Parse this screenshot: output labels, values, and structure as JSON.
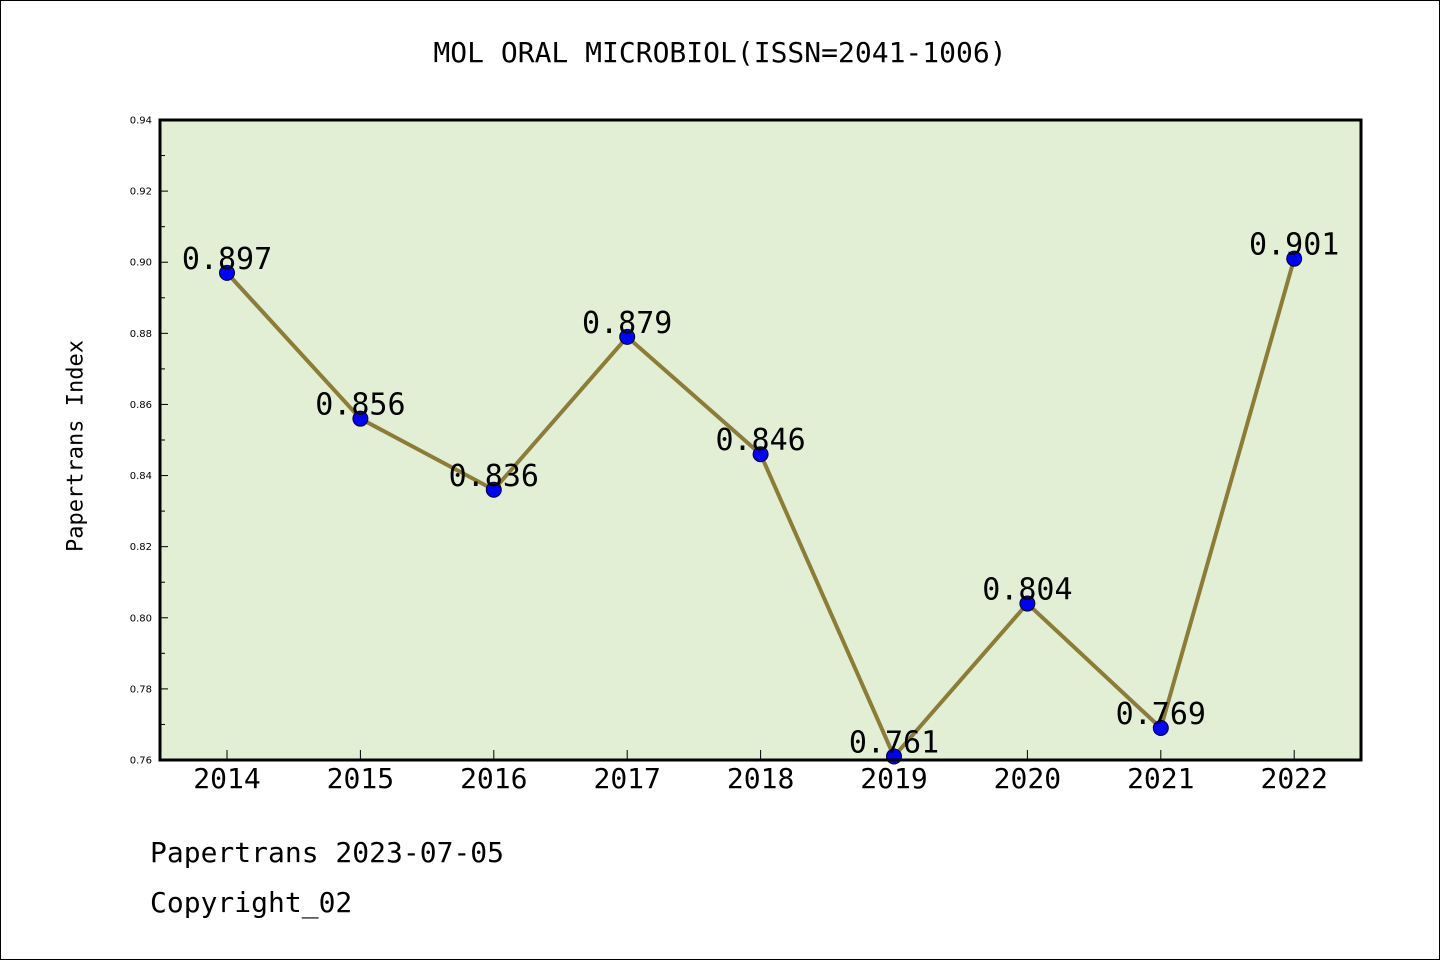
{
  "header": {
    "title": "MOL ORAL MICROBIOL(ISSN=2041-1006)"
  },
  "footer": {
    "date_text": "Papertrans 2023-07-05",
    "copyright_text": "Copyright_02"
  },
  "colors": {
    "plot_background": "#e2efd4",
    "line": "#8b7d38",
    "marker": "#0000ff"
  },
  "chart_data": {
    "type": "line",
    "title": "MOL ORAL MICROBIOL(ISSN=2041-1006)",
    "xlabel": "",
    "ylabel": "Papertrans Index",
    "categories": [
      "2014",
      "2015",
      "2016",
      "2017",
      "2018",
      "2019",
      "2020",
      "2021",
      "2022"
    ],
    "series": [
      {
        "values": [
          0.897,
          0.856,
          0.836,
          0.879,
          0.846,
          0.761,
          0.804,
          0.769,
          0.901
        ]
      }
    ],
    "data_labels": [
      "0.897",
      "0.856",
      "0.836",
      "0.879",
      "0.846",
      "0.761",
      "0.804",
      "0.769",
      "0.901"
    ],
    "ylim": [
      0.76,
      0.94
    ],
    "yticks": [
      "0.76",
      "0.78",
      "0.80",
      "0.82",
      "0.84",
      "0.86",
      "0.88",
      "0.90",
      "0.92",
      "0.94"
    ],
    "grid": false,
    "legend": "none"
  }
}
